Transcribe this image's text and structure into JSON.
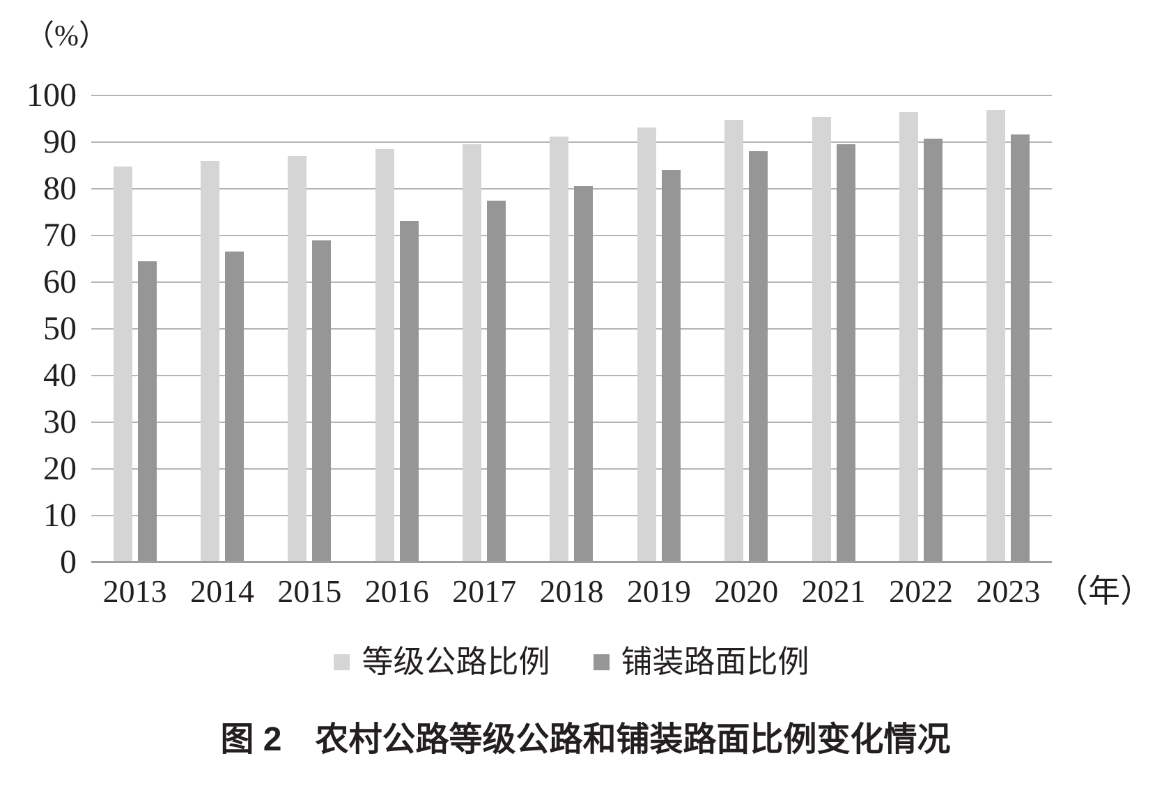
{
  "chart_data": {
    "type": "bar",
    "title": "图 2　农村公路等级公路和铺装路面比例变化情况",
    "y_unit_label": "（%）",
    "x_axis_suffix": "（年）",
    "categories": [
      "2013",
      "2014",
      "2015",
      "2016",
      "2017",
      "2018",
      "2019",
      "2020",
      "2021",
      "2022",
      "2023"
    ],
    "series": [
      {
        "name": "等级公路比例",
        "color": "#d5d5d6",
        "values": [
          84.8,
          86.0,
          87.0,
          88.5,
          89.5,
          91.2,
          93.2,
          94.8,
          95.4,
          96.4,
          96.8
        ]
      },
      {
        "name": "铺装路面比例",
        "color": "#969697",
        "values": [
          64.5,
          66.5,
          69.0,
          73.2,
          77.5,
          80.6,
          84.0,
          88.1,
          89.6,
          90.8,
          91.6
        ]
      }
    ],
    "ylim": [
      0,
      100
    ],
    "y_ticks": [
      100,
      90,
      80,
      70,
      60,
      50,
      40,
      30,
      20,
      10,
      0
    ],
    "grid": true,
    "legend_position": "bottom"
  },
  "colors": {
    "gridline": "#b5b5b5",
    "axis_line": "#9e9e9e",
    "text": "#231f20",
    "background": "#ffffff"
  }
}
